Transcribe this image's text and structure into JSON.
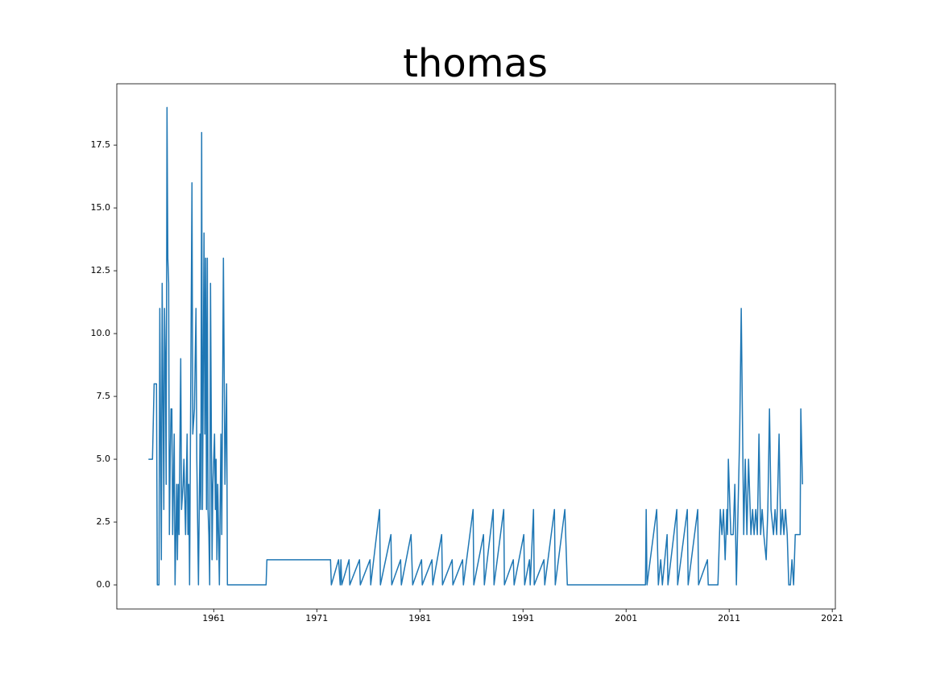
{
  "chart_data": {
    "type": "line",
    "title": "thomas",
    "color": "#1f77b4",
    "x": [
      1954.67,
      1955.06,
      1955.22,
      1955.45,
      1955.53,
      1955.69,
      1955.77,
      1955.92,
      1956.0,
      1956.16,
      1956.23,
      1956.31,
      1956.39,
      1956.47,
      1956.55,
      1956.63,
      1956.7,
      1956.78,
      1956.86,
      1956.94,
      1957.02,
      1957.17,
      1957.25,
      1957.41,
      1957.48,
      1957.56,
      1957.64,
      1957.8,
      1957.88,
      1958.03,
      1958.11,
      1958.27,
      1958.34,
      1958.42,
      1958.5,
      1958.58,
      1958.66,
      1958.73,
      1958.89,
      1958.97,
      1959.13,
      1959.28,
      1959.36,
      1959.52,
      1959.67,
      1959.75,
      1959.83,
      1959.91,
      1960.06,
      1960.14,
      1960.22,
      1960.3,
      1960.38,
      1960.45,
      1960.53,
      1960.61,
      1960.69,
      1960.84,
      1960.92,
      1961.08,
      1961.16,
      1961.23,
      1961.31,
      1961.39,
      1961.47,
      1961.55,
      1961.7,
      1961.78,
      1961.94,
      1962.09,
      1962.25,
      1962.33,
      1966.08,
      1966.16,
      1972.33,
      1972.41,
      1973.11,
      1973.27,
      1973.34,
      1973.42,
      1974.13,
      1974.2,
      1975.14,
      1975.22,
      1976.16,
      1976.23,
      1977.09,
      1977.17,
      1978.19,
      1978.27,
      1979.13,
      1979.2,
      1980.14,
      1980.3,
      1981.16,
      1981.23,
      1982.17,
      1982.25,
      1983.11,
      1983.19,
      1984.13,
      1984.2,
      1985.14,
      1985.22,
      1986.16,
      1986.23,
      1987.17,
      1987.25,
      1988.11,
      1988.19,
      1989.13,
      1989.2,
      1990.06,
      1990.14,
      1991.08,
      1991.16,
      1991.63,
      1991.7,
      1992.02,
      1992.09,
      1993.03,
      1993.11,
      1994.05,
      1994.13,
      1995.06,
      1995.3,
      2002.88,
      2002.95,
      2003.03,
      2003.97,
      2004.13,
      2004.36,
      2004.52,
      2004.98,
      2005.06,
      2005.92,
      2006.0,
      2006.94,
      2007.02,
      2007.95,
      2008.03,
      2008.89,
      2008.97,
      2009.91,
      2010.14,
      2010.3,
      2010.45,
      2010.61,
      2010.77,
      2010.84,
      2010.92,
      2011.16,
      2011.39,
      2011.55,
      2011.7,
      2012.02,
      2012.17,
      2012.41,
      2012.56,
      2012.72,
      2012.88,
      2013.11,
      2013.27,
      2013.42,
      2013.58,
      2013.73,
      2013.89,
      2014.05,
      2014.2,
      2014.36,
      2014.59,
      2014.75,
      2014.91,
      2015.06,
      2015.3,
      2015.45,
      2015.61,
      2015.84,
      2016.0,
      2016.16,
      2016.31,
      2016.47,
      2016.63,
      2016.78,
      2016.94,
      2017.09,
      2017.25,
      2017.41,
      2017.88,
      2017.95,
      2018.11
    ],
    "values": [
      5,
      5,
      8,
      8,
      0,
      0,
      11,
      1,
      12,
      3,
      11,
      9,
      4,
      19,
      13,
      12,
      2,
      5,
      7,
      7,
      2,
      6,
      0,
      4,
      1,
      4,
      2,
      9,
      3,
      4,
      5,
      2,
      4,
      6,
      2,
      4,
      0,
      5,
      16,
      6,
      7,
      11,
      5,
      0,
      6,
      3,
      18,
      3,
      14,
      6,
      13,
      3,
      13,
      3,
      2,
      0,
      12,
      1,
      4,
      6,
      3,
      5,
      1,
      4,
      2,
      0,
      6,
      2,
      13,
      4,
      8,
      0,
      0,
      1,
      1,
      0,
      1,
      0,
      1,
      0,
      1,
      0,
      1,
      0,
      1,
      0,
      3,
      0,
      2,
      0,
      1,
      0,
      2,
      0,
      1,
      0,
      1,
      0,
      2,
      0,
      1,
      0,
      1,
      0,
      3,
      0,
      2,
      0,
      3,
      0,
      3,
      0,
      1,
      0,
      2,
      0,
      1,
      0,
      3,
      0,
      1,
      0,
      3,
      0,
      3,
      0,
      0,
      3,
      0,
      3,
      0,
      1,
      0,
      2,
      0,
      3,
      0,
      3,
      0,
      3,
      0,
      1,
      0,
      0,
      3,
      2,
      3,
      1,
      3,
      2,
      5,
      2,
      2,
      4,
      0,
      6,
      11,
      2,
      5,
      2,
      5,
      2,
      3,
      2,
      3,
      2,
      6,
      2,
      3,
      2,
      1,
      3,
      7,
      3,
      2,
      3,
      2,
      6,
      2,
      3,
      2,
      3,
      2,
      0,
      0,
      1,
      0,
      2,
      2,
      7,
      4
    ],
    "xlim": [
      1951.6,
      2021.3
    ],
    "xticks": [
      1961,
      1971,
      1981,
      1991,
      2001,
      2011,
      2021
    ],
    "ylim": [
      -0.96,
      19.94
    ],
    "yticks": [
      {
        "value": 0,
        "label": "0.0"
      },
      {
        "value": 2.5,
        "label": "2.5"
      },
      {
        "value": 5,
        "label": "5.0"
      },
      {
        "value": 7.5,
        "label": "7.5"
      },
      {
        "value": 10,
        "label": "10.0"
      },
      {
        "value": 12.5,
        "label": "12.5"
      },
      {
        "value": 15,
        "label": "15.0"
      },
      {
        "value": 17.5,
        "label": "17.5"
      }
    ]
  }
}
